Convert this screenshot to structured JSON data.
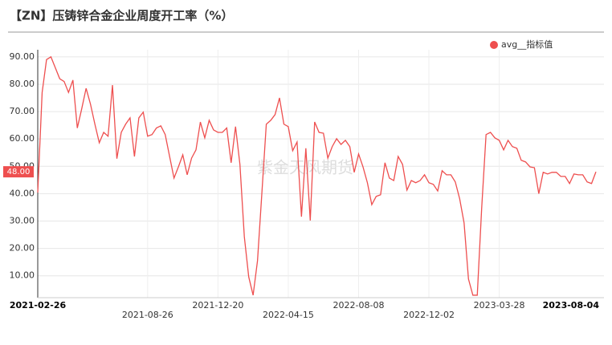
{
  "chart_data": {
    "type": "line",
    "title": "【ZN】压铸锌合金企业周度开工率（%）",
    "watermark": "紫金天风期货",
    "categories": [
      "2021-02-26",
      null,
      null,
      null,
      null,
      null,
      null,
      null,
      null,
      null,
      null,
      null,
      null,
      null,
      null,
      null,
      null,
      null,
      null,
      null,
      null,
      null,
      null,
      null,
      null,
      "2021-08-26",
      null,
      null,
      null,
      null,
      null,
      null,
      null,
      null,
      null,
      null,
      null,
      null,
      null,
      null,
      null,
      "2021-12-20",
      null,
      null,
      null,
      null,
      null,
      null,
      null,
      null,
      null,
      null,
      null,
      null,
      null,
      null,
      null,
      "2022-04-15",
      null,
      null,
      null,
      null,
      null,
      null,
      null,
      null,
      null,
      null,
      null,
      null,
      null,
      null,
      null,
      "2022-08-08",
      null,
      null,
      null,
      null,
      null,
      null,
      null,
      null,
      null,
      null,
      null,
      null,
      null,
      null,
      null,
      "2022-12-02",
      null,
      null,
      null,
      null,
      null,
      null,
      null,
      null,
      null,
      null,
      null,
      null,
      null,
      null,
      null,
      "2023-03-28",
      null,
      null,
      null,
      null,
      null,
      null,
      null,
      null,
      null,
      null,
      null,
      null,
      null,
      null,
      null,
      null,
      null,
      null,
      null,
      null,
      null,
      "2023-08-04"
    ],
    "series": [
      {
        "name": "avg__指标值",
        "color": "#ee4f4f",
        "values": [
          40.4,
          77,
          89,
          90,
          86,
          82,
          81,
          77,
          81.5,
          64,
          71,
          78.5,
          72.7,
          65.4,
          58.6,
          62.4,
          61,
          79.7,
          52.8,
          62.4,
          65.4,
          67.7,
          53.6,
          67.7,
          69.8,
          61,
          61.6,
          64,
          64.8,
          61.6,
          53.6,
          45.7,
          49.8,
          54.2,
          46.9,
          53,
          56,
          66.2,
          60.4,
          66.8,
          63.3,
          62.4,
          62.4,
          64,
          51.3,
          64.5,
          50.7,
          24.3,
          9.6,
          2.9,
          15.5,
          40.4,
          65.4,
          66.8,
          68.9,
          75,
          65.4,
          64.5,
          55.7,
          58.9,
          31.6,
          56.6,
          30.2,
          66.2,
          62.4,
          62.1,
          53,
          57.2,
          60.1,
          58,
          59.5,
          57.2,
          47.8,
          54.5,
          49.8,
          44,
          36,
          39,
          39.6,
          51.3,
          45.7,
          44.8,
          53.6,
          50.7,
          41.3,
          44.8,
          44,
          44.8,
          46.9,
          44,
          43.4,
          41,
          48.4,
          46.9,
          46.9,
          44.3,
          38.1,
          29.3,
          8.8,
          2.9,
          2.9,
          34.6,
          61.6,
          62.4,
          60.4,
          59.5,
          56,
          59.5,
          57.2,
          56.6,
          52.2,
          51.6,
          49.8,
          49.5,
          40,
          47.8,
          47.2,
          47.8,
          47.8,
          46.3,
          46.3,
          43.7,
          47.2,
          46.9,
          46.9,
          44.3,
          43.7,
          48
        ]
      }
    ],
    "marker": {
      "value": 48,
      "label": "48.00"
    },
    "ylim": [
      2,
      92.6
    ],
    "yticks": [
      {
        "value": 10,
        "label": "10.00"
      },
      {
        "value": 20,
        "label": "20.00"
      },
      {
        "value": 30,
        "label": "30.00"
      },
      {
        "value": 40,
        "label": "40.00"
      },
      {
        "value": 50,
        "label": "50.00"
      },
      {
        "value": 60,
        "label": "60.00"
      },
      {
        "value": 70,
        "label": "70.00"
      },
      {
        "value": 80,
        "label": "80.00"
      },
      {
        "value": 90,
        "label": "90.00"
      }
    ],
    "grid": true
  }
}
